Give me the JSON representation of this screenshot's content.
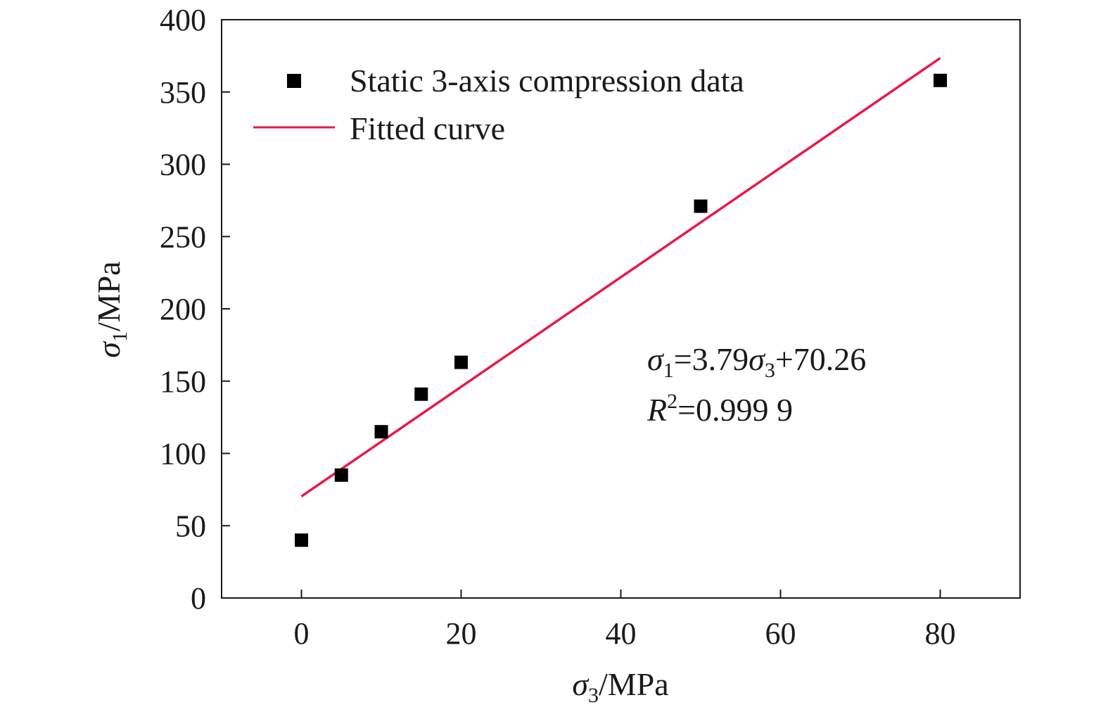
{
  "chart_data": {
    "type": "scatter",
    "xlabel": {
      "symbol": "σ",
      "sub": "3",
      "unit": "/MPa"
    },
    "ylabel": {
      "symbol": "σ",
      "sub": "1",
      "unit": "/MPa"
    },
    "xlim": [
      -10,
      90
    ],
    "ylim": [
      0,
      400
    ],
    "xticks": [
      0,
      20,
      40,
      60,
      80
    ],
    "yticks": [
      0,
      50,
      100,
      150,
      200,
      250,
      300,
      350,
      400
    ],
    "grid": false,
    "legend_position": "top-left",
    "series": [
      {
        "name": "Static 3-axis compression data",
        "kind": "scatter",
        "marker": "square",
        "color": "#000000",
        "x": [
          0,
          5,
          10,
          15,
          20,
          50,
          80
        ],
        "y": [
          40,
          85,
          115,
          141,
          163,
          271,
          358
        ]
      },
      {
        "name": "Fitted curve",
        "kind": "line",
        "color": "#e8194a",
        "x": [
          0,
          80
        ],
        "y": [
          70.26,
          373.46
        ]
      }
    ],
    "annotation": {
      "equation": {
        "lhs_symbol": "σ",
        "lhs_sub": "1",
        "coef_text": "=3.79",
        "rhs_symbol": "σ",
        "rhs_sub": "3",
        "const_text": "+70.26"
      },
      "r2": {
        "symbol": "R",
        "sup": "2",
        "value_text": "=0.999 9"
      }
    }
  }
}
